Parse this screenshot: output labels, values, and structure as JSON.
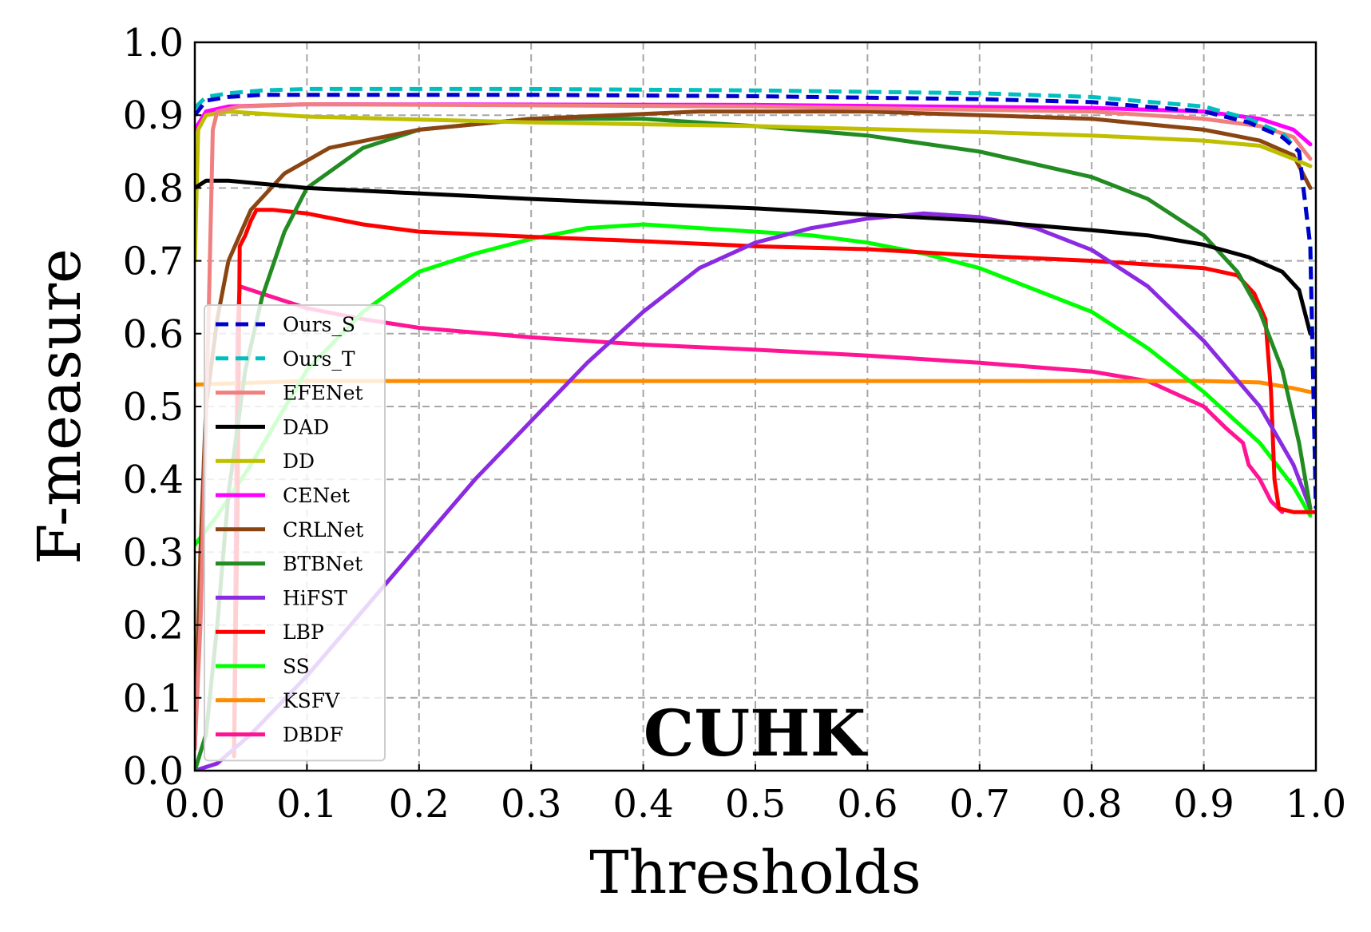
{
  "chart_data": {
    "type": "line",
    "xlabel": "Thresholds",
    "ylabel": "F-measure",
    "annotation": "CUHK",
    "xlim": [
      0,
      1
    ],
    "ylim": [
      0,
      1
    ],
    "xticks": [
      "0.0",
      "0.1",
      "0.2",
      "0.3",
      "0.4",
      "0.5",
      "0.6",
      "0.7",
      "0.8",
      "0.9",
      "1.0"
    ],
    "yticks": [
      "0.0",
      "0.1",
      "0.2",
      "0.3",
      "0.4",
      "0.5",
      "0.6",
      "0.7",
      "0.8",
      "0.9",
      "1.0"
    ],
    "grid": true,
    "legend_position": "lower-left",
    "series": [
      {
        "name": "Ours_S",
        "color": "#0000cd",
        "dash": "dashed",
        "points": [
          [
            0,
            0.9
          ],
          [
            0.01,
            0.92
          ],
          [
            0.03,
            0.925
          ],
          [
            0.06,
            0.928
          ],
          [
            0.1,
            0.928
          ],
          [
            0.3,
            0.928
          ],
          [
            0.5,
            0.926
          ],
          [
            0.7,
            0.922
          ],
          [
            0.8,
            0.918
          ],
          [
            0.9,
            0.905
          ],
          [
            0.94,
            0.89
          ],
          [
            0.97,
            0.87
          ],
          [
            0.985,
            0.85
          ],
          [
            0.995,
            0.72
          ],
          [
            1.0,
            0.36
          ]
        ]
      },
      {
        "name": "Ours_T",
        "color": "#00bfbf",
        "dash": "dashed",
        "points": [
          [
            0,
            0.91
          ],
          [
            0.01,
            0.925
          ],
          [
            0.03,
            0.93
          ],
          [
            0.06,
            0.934
          ],
          [
            0.1,
            0.936
          ],
          [
            0.3,
            0.936
          ],
          [
            0.5,
            0.934
          ],
          [
            0.7,
            0.93
          ],
          [
            0.8,
            0.925
          ],
          [
            0.9,
            0.912
          ],
          [
            0.94,
            0.895
          ],
          [
            0.97,
            0.875
          ],
          [
            0.985,
            0.85
          ],
          [
            0.995,
            0.72
          ],
          [
            1.0,
            0.36
          ]
        ]
      },
      {
        "name": "EFENet",
        "color": "#f08080",
        "dash": "solid",
        "points": [
          [
            0,
            0.03
          ],
          [
            0.005,
            0.2
          ],
          [
            0.012,
            0.6
          ],
          [
            0.016,
            0.88
          ],
          [
            0.02,
            0.905
          ],
          [
            0.04,
            0.912
          ],
          [
            0.1,
            0.915
          ],
          [
            0.5,
            0.912
          ],
          [
            0.8,
            0.905
          ],
          [
            0.9,
            0.895
          ],
          [
            0.95,
            0.885
          ],
          [
            0.98,
            0.87
          ],
          [
            0.995,
            0.84
          ]
        ]
      },
      {
        "name": "DAD",
        "color": "#000000",
        "dash": "solid",
        "points": [
          [
            0,
            0.8
          ],
          [
            0.01,
            0.81
          ],
          [
            0.03,
            0.81
          ],
          [
            0.1,
            0.8
          ],
          [
            0.3,
            0.785
          ],
          [
            0.5,
            0.772
          ],
          [
            0.7,
            0.755
          ],
          [
            0.8,
            0.742
          ],
          [
            0.85,
            0.735
          ],
          [
            0.9,
            0.722
          ],
          [
            0.94,
            0.705
          ],
          [
            0.97,
            0.685
          ],
          [
            0.985,
            0.66
          ],
          [
            0.995,
            0.6
          ]
        ]
      },
      {
        "name": "DD",
        "color": "#bfbf00",
        "dash": "solid",
        "points": [
          [
            0,
            0.7
          ],
          [
            0.003,
            0.88
          ],
          [
            0.01,
            0.9
          ],
          [
            0.03,
            0.905
          ],
          [
            0.1,
            0.898
          ],
          [
            0.3,
            0.89
          ],
          [
            0.5,
            0.885
          ],
          [
            0.7,
            0.877
          ],
          [
            0.8,
            0.872
          ],
          [
            0.9,
            0.865
          ],
          [
            0.95,
            0.858
          ],
          [
            0.98,
            0.84
          ],
          [
            0.995,
            0.83
          ]
        ]
      },
      {
        "name": "CENet",
        "color": "#ff00ff",
        "dash": "solid",
        "points": [
          [
            0,
            0.88
          ],
          [
            0.01,
            0.905
          ],
          [
            0.03,
            0.912
          ],
          [
            0.1,
            0.915
          ],
          [
            0.5,
            0.914
          ],
          [
            0.8,
            0.91
          ],
          [
            0.9,
            0.905
          ],
          [
            0.95,
            0.895
          ],
          [
            0.98,
            0.88
          ],
          [
            0.995,
            0.86
          ]
        ]
      },
      {
        "name": "CRLNet",
        "color": "#8b4513",
        "dash": "solid",
        "points": [
          [
            0,
            0.03
          ],
          [
            0.005,
            0.3
          ],
          [
            0.01,
            0.5
          ],
          [
            0.02,
            0.62
          ],
          [
            0.03,
            0.7
          ],
          [
            0.05,
            0.77
          ],
          [
            0.08,
            0.82
          ],
          [
            0.12,
            0.855
          ],
          [
            0.2,
            0.88
          ],
          [
            0.3,
            0.895
          ],
          [
            0.45,
            0.905
          ],
          [
            0.6,
            0.905
          ],
          [
            0.8,
            0.895
          ],
          [
            0.9,
            0.88
          ],
          [
            0.95,
            0.865
          ],
          [
            0.98,
            0.845
          ],
          [
            0.995,
            0.8
          ]
        ]
      },
      {
        "name": "BTBNet",
        "color": "#228b22",
        "dash": "solid",
        "points": [
          [
            0,
            0.0
          ],
          [
            0.01,
            0.05
          ],
          [
            0.02,
            0.2
          ],
          [
            0.03,
            0.38
          ],
          [
            0.045,
            0.55
          ],
          [
            0.06,
            0.65
          ],
          [
            0.08,
            0.74
          ],
          [
            0.1,
            0.8
          ],
          [
            0.15,
            0.855
          ],
          [
            0.2,
            0.88
          ],
          [
            0.3,
            0.895
          ],
          [
            0.4,
            0.895
          ],
          [
            0.5,
            0.885
          ],
          [
            0.6,
            0.872
          ],
          [
            0.7,
            0.85
          ],
          [
            0.8,
            0.815
          ],
          [
            0.85,
            0.785
          ],
          [
            0.9,
            0.735
          ],
          [
            0.93,
            0.685
          ],
          [
            0.95,
            0.63
          ],
          [
            0.97,
            0.55
          ],
          [
            0.985,
            0.45
          ],
          [
            0.995,
            0.36
          ]
        ]
      },
      {
        "name": "HiFST",
        "color": "#8a2be2",
        "dash": "solid",
        "points": [
          [
            0,
            0.0
          ],
          [
            0.02,
            0.01
          ],
          [
            0.05,
            0.05
          ],
          [
            0.1,
            0.13
          ],
          [
            0.15,
            0.22
          ],
          [
            0.2,
            0.31
          ],
          [
            0.25,
            0.4
          ],
          [
            0.3,
            0.48
          ],
          [
            0.35,
            0.56
          ],
          [
            0.4,
            0.63
          ],
          [
            0.45,
            0.69
          ],
          [
            0.5,
            0.725
          ],
          [
            0.55,
            0.745
          ],
          [
            0.6,
            0.758
          ],
          [
            0.65,
            0.765
          ],
          [
            0.7,
            0.76
          ],
          [
            0.75,
            0.745
          ],
          [
            0.8,
            0.715
          ],
          [
            0.85,
            0.665
          ],
          [
            0.9,
            0.59
          ],
          [
            0.95,
            0.5
          ],
          [
            0.98,
            0.42
          ],
          [
            0.995,
            0.36
          ]
        ]
      },
      {
        "name": "LBP",
        "color": "#ff0000",
        "dash": "solid",
        "points": [
          [
            0.035,
            0.02
          ],
          [
            0.038,
            0.35
          ],
          [
            0.04,
            0.72
          ],
          [
            0.045,
            0.735
          ],
          [
            0.05,
            0.755
          ],
          [
            0.055,
            0.77
          ],
          [
            0.07,
            0.77
          ],
          [
            0.1,
            0.765
          ],
          [
            0.15,
            0.75
          ],
          [
            0.2,
            0.74
          ],
          [
            0.3,
            0.733
          ],
          [
            0.4,
            0.727
          ],
          [
            0.5,
            0.72
          ],
          [
            0.6,
            0.716
          ],
          [
            0.7,
            0.707
          ],
          [
            0.8,
            0.7
          ],
          [
            0.9,
            0.69
          ],
          [
            0.93,
            0.68
          ],
          [
            0.945,
            0.655
          ],
          [
            0.955,
            0.62
          ],
          [
            0.96,
            0.52
          ],
          [
            0.963,
            0.4
          ],
          [
            0.967,
            0.36
          ],
          [
            0.98,
            0.355
          ],
          [
            1.0,
            0.355
          ]
        ]
      },
      {
        "name": "SS",
        "color": "#00ff00",
        "dash": "solid",
        "points": [
          [
            0,
            0.31
          ],
          [
            0.02,
            0.35
          ],
          [
            0.05,
            0.42
          ],
          [
            0.1,
            0.55
          ],
          [
            0.15,
            0.63
          ],
          [
            0.2,
            0.685
          ],
          [
            0.25,
            0.71
          ],
          [
            0.3,
            0.73
          ],
          [
            0.35,
            0.745
          ],
          [
            0.4,
            0.75
          ],
          [
            0.45,
            0.745
          ],
          [
            0.5,
            0.74
          ],
          [
            0.55,
            0.735
          ],
          [
            0.6,
            0.725
          ],
          [
            0.65,
            0.71
          ],
          [
            0.7,
            0.69
          ],
          [
            0.75,
            0.66
          ],
          [
            0.8,
            0.63
          ],
          [
            0.85,
            0.58
          ],
          [
            0.9,
            0.52
          ],
          [
            0.95,
            0.45
          ],
          [
            0.98,
            0.39
          ],
          [
            0.995,
            0.35
          ]
        ]
      },
      {
        "name": "KSFV",
        "color": "#ff8c00",
        "dash": "solid",
        "points": [
          [
            0,
            0.53
          ],
          [
            0.1,
            0.535
          ],
          [
            0.5,
            0.535
          ],
          [
            0.9,
            0.535
          ],
          [
            0.95,
            0.533
          ],
          [
            0.98,
            0.525
          ],
          [
            0.995,
            0.52
          ]
        ]
      },
      {
        "name": "DBDF",
        "color": "#ff1493",
        "dash": "solid",
        "points": [
          [
            0.035,
            0.02
          ],
          [
            0.038,
            0.6
          ],
          [
            0.04,
            0.665
          ],
          [
            0.05,
            0.66
          ],
          [
            0.1,
            0.635
          ],
          [
            0.15,
            0.62
          ],
          [
            0.2,
            0.608
          ],
          [
            0.3,
            0.595
          ],
          [
            0.4,
            0.585
          ],
          [
            0.5,
            0.578
          ],
          [
            0.6,
            0.57
          ],
          [
            0.7,
            0.56
          ],
          [
            0.8,
            0.548
          ],
          [
            0.85,
            0.535
          ],
          [
            0.9,
            0.5
          ],
          [
            0.92,
            0.47
          ],
          [
            0.935,
            0.45
          ],
          [
            0.94,
            0.42
          ],
          [
            0.95,
            0.4
          ],
          [
            0.96,
            0.37
          ],
          [
            0.97,
            0.355
          ]
        ]
      }
    ]
  }
}
